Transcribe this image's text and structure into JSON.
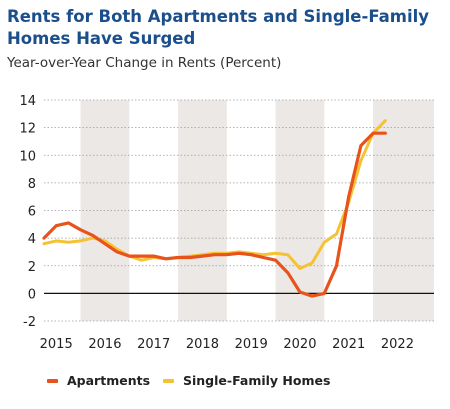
{
  "title": "Rents for Both Apartments and Single-Family Homes Have Surged",
  "subtitle": "Year-over-Year Change in Rents (Percent)",
  "chart_data": {
    "type": "line",
    "x_range": [
      2014.75,
      2022.75
    ],
    "ylim": [
      -2,
      14
    ],
    "y_ticks": [
      -2,
      0,
      2,
      4,
      6,
      8,
      10,
      12,
      14
    ],
    "x_ticks": [
      2015,
      2016,
      2017,
      2018,
      2019,
      2020,
      2021,
      2022
    ],
    "x_tick_labels": [
      "2015",
      "2016",
      "2017",
      "2018",
      "2019",
      "2020",
      "2021",
      "2022"
    ],
    "shaded_bands": [
      [
        2015.5,
        2016.5
      ],
      [
        2017.5,
        2018.5
      ],
      [
        2019.5,
        2020.5
      ],
      [
        2021.5,
        2022.75
      ]
    ],
    "grid": true,
    "legend_position": "bottom",
    "series": [
      {
        "name": "Apartments",
        "color": "#e8521b",
        "x": [
          2014.75,
          2015.0,
          2015.25,
          2015.5,
          2015.75,
          2016.0,
          2016.25,
          2016.5,
          2016.75,
          2017.0,
          2017.25,
          2017.5,
          2017.75,
          2018.0,
          2018.25,
          2018.5,
          2018.75,
          2019.0,
          2019.25,
          2019.5,
          2019.75,
          2020.0,
          2020.25,
          2020.5,
          2020.75,
          2021.0,
          2021.25,
          2021.5,
          2021.75
        ],
        "values": [
          4.0,
          4.9,
          5.1,
          4.6,
          4.2,
          3.6,
          3.0,
          2.7,
          2.7,
          2.7,
          2.5,
          2.6,
          2.6,
          2.7,
          2.8,
          2.8,
          2.9,
          2.8,
          2.6,
          2.4,
          1.5,
          0.1,
          -0.2,
          0.0,
          2.0,
          7.0,
          10.7,
          11.6,
          11.6
        ]
      },
      {
        "name": "Single-Family Homes",
        "color": "#f5c331",
        "x": [
          2014.75,
          2015.0,
          2015.25,
          2015.5,
          2015.75,
          2016.0,
          2016.25,
          2016.5,
          2016.75,
          2017.0,
          2017.25,
          2017.5,
          2017.75,
          2018.0,
          2018.25,
          2018.5,
          2018.75,
          2019.0,
          2019.25,
          2019.5,
          2019.75,
          2020.0,
          2020.25,
          2020.5,
          2020.75,
          2021.0,
          2021.25,
          2021.5,
          2021.75
        ],
        "values": [
          3.6,
          3.8,
          3.7,
          3.8,
          4.0,
          3.8,
          3.2,
          2.7,
          2.4,
          2.6,
          2.5,
          2.6,
          2.7,
          2.8,
          2.9,
          2.9,
          3.0,
          2.9,
          2.8,
          2.9,
          2.8,
          1.8,
          2.2,
          3.7,
          4.3,
          6.6,
          9.6,
          11.6,
          12.5
        ]
      }
    ]
  }
}
